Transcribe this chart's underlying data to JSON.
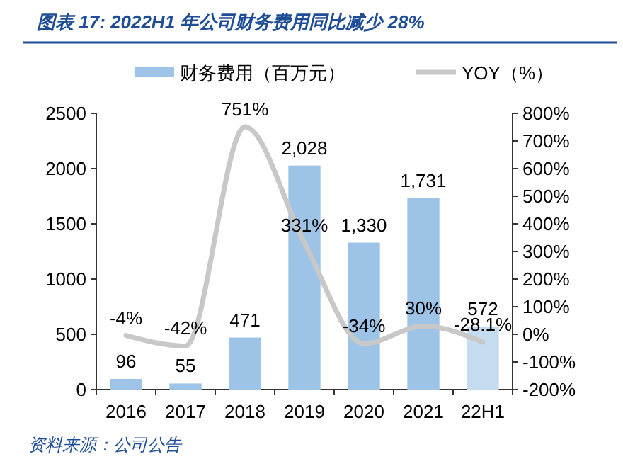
{
  "chart_data": {
    "type": "bar",
    "title": "图表 17:  2022H1 年公司财务费用同比减少 28%",
    "categories": [
      "2016",
      "2017",
      "2018",
      "2019",
      "2020",
      "2021",
      "22H1"
    ],
    "series": [
      {
        "name": "财务费用（百万元）",
        "color": "#9dc3e6",
        "colors": [
          "#9dc3e6",
          "#9dc3e6",
          "#9dc3e6",
          "#9dc3e6",
          "#9dc3e6",
          "#9dc3e6",
          "#c5dcf0"
        ],
        "values": [
          96,
          55,
          471,
          2028,
          1330,
          1731,
          572
        ],
        "value_labels": [
          "96",
          "55",
          "471",
          "2,028",
          "1,330",
          "1,731",
          "572"
        ]
      },
      {
        "name": "YOY（%）",
        "type": "line",
        "axis": "y2",
        "color": "#c8c8c8",
        "values": [
          -4,
          -42,
          751,
          331,
          -34,
          30,
          -28.1
        ],
        "value_labels": [
          "-4%",
          "-42%",
          "751%",
          "331%",
          "-34%",
          "30%",
          "-28.1%"
        ]
      }
    ],
    "ylim": [
      0,
      2500
    ],
    "yticks": [
      0,
      500,
      1000,
      1500,
      2000,
      2500
    ],
    "y2lim": [
      -200,
      800
    ],
    "y2ticks": [
      {
        "value": -200,
        "label": "-200%"
      },
      {
        "value": -100,
        "label": "-100%"
      },
      {
        "value": 0,
        "label": "0%"
      },
      {
        "value": 100,
        "label": "100%"
      },
      {
        "value": 200,
        "label": "200%"
      },
      {
        "value": 300,
        "label": "300%"
      },
      {
        "value": 400,
        "label": "400%"
      },
      {
        "value": 500,
        "label": "500%"
      },
      {
        "value": 600,
        "label": "600%"
      },
      {
        "value": 700,
        "label": "700%"
      },
      {
        "value": 800,
        "label": "800%"
      }
    ],
    "legend": "top",
    "grid": false,
    "annotations": [
      "资料来源：公司公告"
    ]
  }
}
